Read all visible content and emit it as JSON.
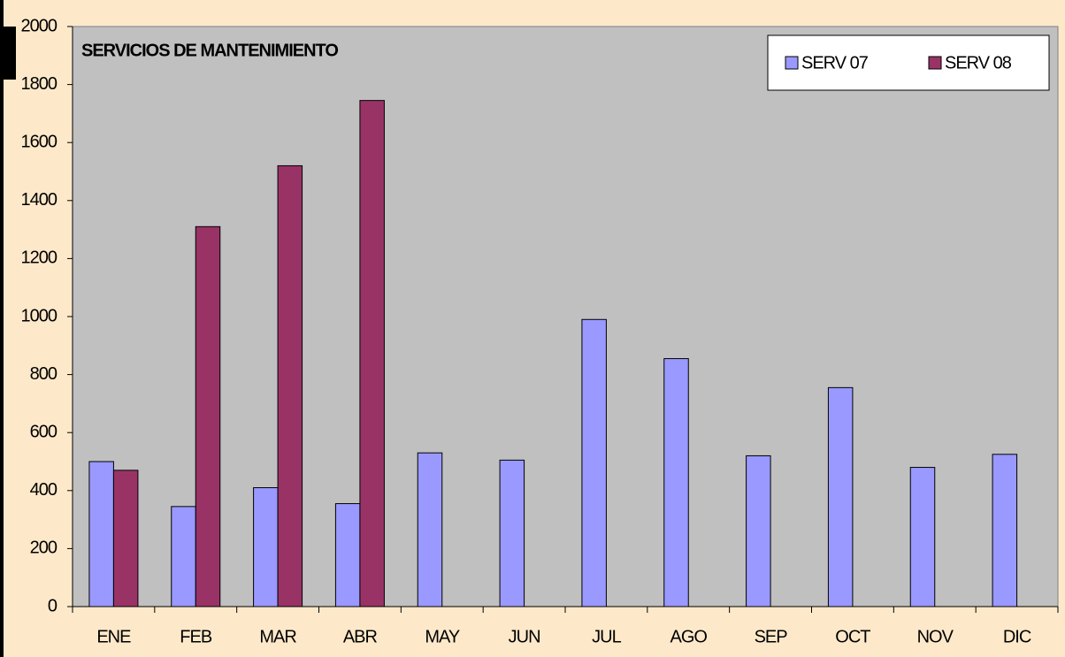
{
  "chart_data": {
    "type": "bar",
    "title": "SERVICIOS DE MANTENIMIENTO",
    "categories": [
      "ENE",
      "FEB",
      "MAR",
      "ABR",
      "MAY",
      "JUN",
      "JUL",
      "AGO",
      "SEP",
      "OCT",
      "NOV",
      "DIC"
    ],
    "series": [
      {
        "name": "SERV 07",
        "color": "#9999ff",
        "values": [
          500,
          345,
          410,
          355,
          530,
          505,
          990,
          855,
          520,
          755,
          480,
          525
        ]
      },
      {
        "name": "SERV 08",
        "color": "#993366",
        "values": [
          470,
          1310,
          1520,
          1745,
          null,
          null,
          null,
          null,
          null,
          null,
          null,
          null
        ]
      }
    ],
    "ylim": [
      0,
      2000
    ],
    "yticks": [
      0,
      200,
      400,
      600,
      800,
      1000,
      1200,
      1400,
      1600,
      1800,
      2000
    ],
    "grid": false,
    "legend": "top-right"
  }
}
